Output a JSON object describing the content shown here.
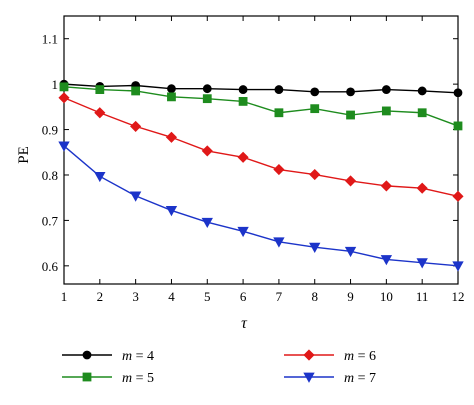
{
  "chart_data": {
    "type": "line",
    "title": "",
    "xlabel": "τ",
    "ylabel": "PE",
    "x": [
      1,
      2,
      3,
      4,
      5,
      6,
      7,
      8,
      9,
      10,
      11,
      12
    ],
    "xticks": [
      1,
      2,
      3,
      4,
      5,
      6,
      7,
      8,
      9,
      10,
      11,
      12
    ],
    "xlim": [
      1,
      12
    ],
    "yticks": [
      0.6,
      0.7,
      0.8,
      0.9,
      1,
      1.1
    ],
    "ylim": [
      0.56,
      1.15
    ],
    "grid": false,
    "legend_position": "bottom",
    "series": [
      {
        "name": "m = 4",
        "color": "#000000",
        "marker": "circle",
        "values": [
          1.0,
          0.995,
          0.997,
          0.99,
          0.99,
          0.988,
          0.988,
          0.983,
          0.983,
          0.988,
          0.985,
          0.981
        ]
      },
      {
        "name": "m = 5",
        "color": "#1e8c1e",
        "marker": "square",
        "values": [
          0.994,
          0.988,
          0.985,
          0.972,
          0.968,
          0.962,
          0.937,
          0.946,
          0.932,
          0.941,
          0.937,
          0.908
        ]
      },
      {
        "name": "m = 6",
        "color": "#e01818",
        "marker": "diamond",
        "values": [
          0.97,
          0.937,
          0.907,
          0.883,
          0.853,
          0.839,
          0.812,
          0.801,
          0.787,
          0.776,
          0.771,
          0.753
        ]
      },
      {
        "name": "m = 7",
        "color": "#1c34c9",
        "marker": "triangle-down",
        "values": [
          0.864,
          0.797,
          0.754,
          0.722,
          0.696,
          0.676,
          0.653,
          0.641,
          0.632,
          0.614,
          0.607,
          0.6
        ]
      }
    ]
  }
}
